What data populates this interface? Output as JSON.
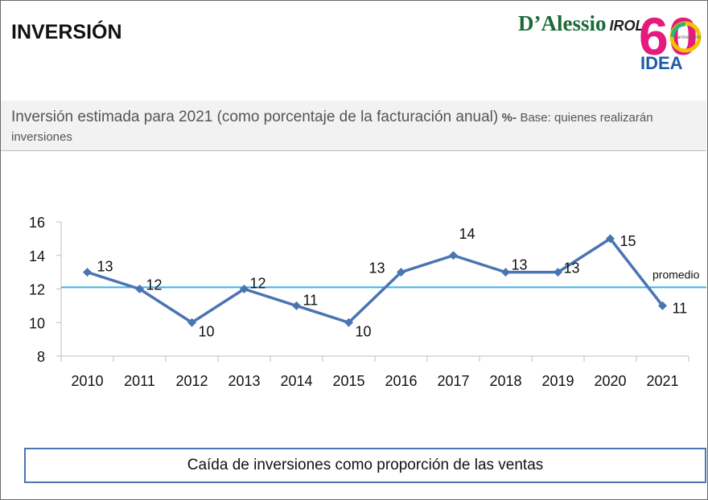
{
  "header": {
    "title": "INVERSIÓN",
    "brand_name": "D’Alessio",
    "brand_suffix": "IROL",
    "logo_number": "60",
    "logo_ring_text": "aniversario",
    "logo_word": "IDEA",
    "logo_colors": [
      "#e6197d",
      "#f2c400",
      "#2bb673",
      "#1e5aa8"
    ]
  },
  "subtitle": {
    "main": "Inversión estimada para 2021 (como porcentaje de la facturación anual)",
    "pct": "%-",
    "base": "Base: quienes realizarán inversiones"
  },
  "chart_data": {
    "type": "line",
    "categories": [
      "2010",
      "2011",
      "2012",
      "2013",
      "2014",
      "2015",
      "2016",
      "2017",
      "2018",
      "2019",
      "2020",
      "2021"
    ],
    "values": [
      13,
      12,
      10,
      12,
      11,
      10,
      13,
      14,
      13,
      13,
      15,
      11
    ],
    "data_labels": [
      "13",
      "12",
      "10",
      "12",
      "11",
      "10",
      "13",
      "14",
      "13",
      "13",
      "15",
      "11"
    ],
    "ylim": [
      8,
      16
    ],
    "yticks": [
      "8",
      "10",
      "12",
      "14",
      "16"
    ],
    "reference_line": {
      "value": 12.1,
      "label": "promedio",
      "color": "#3cb4e6"
    },
    "line_color": "#4a74b2",
    "grid": false
  },
  "caption": "Caída de inversiones como proporción de las ventas"
}
